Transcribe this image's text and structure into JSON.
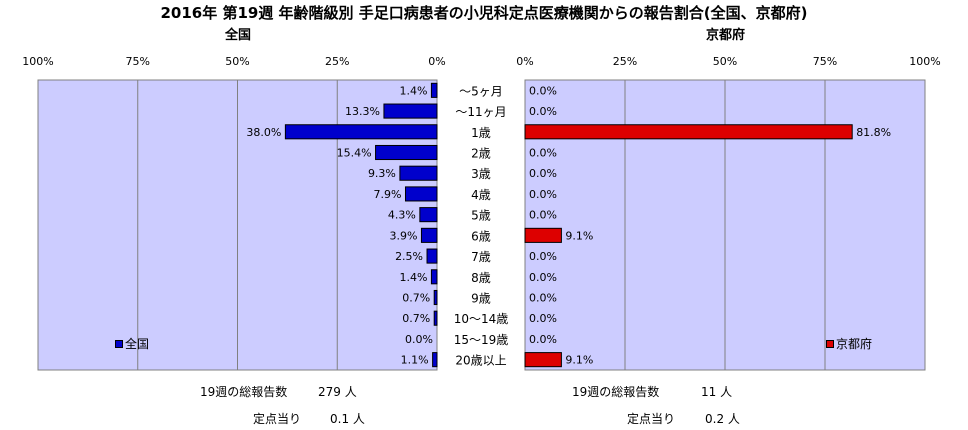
{
  "title": "2016年 第19週 年齢階級別 手足口病患者の小児科定点医療機関からの報告割合(全国、京都府)",
  "chart_data": {
    "type": "bar",
    "orientation": "horizontal",
    "categories": [
      "～5ヶ月",
      "～11ヶ月",
      "1歳",
      "2歳",
      "3歳",
      "4歳",
      "5歳",
      "6歳",
      "7歳",
      "8歳",
      "9歳",
      "10～14歳",
      "15～19歳",
      "20歳以上"
    ],
    "xlim": [
      0,
      100
    ],
    "tick_labels": [
      "0%",
      "25%",
      "50%",
      "75%",
      "100%"
    ],
    "grid": true,
    "panels": [
      {
        "title": "全国",
        "series_name": "全国",
        "color": "#0000cc",
        "direction": "reversed",
        "values": [
          1.4,
          13.3,
          38.0,
          15.4,
          9.3,
          7.9,
          4.3,
          3.9,
          2.5,
          1.4,
          0.7,
          0.7,
          0.0,
          1.1
        ],
        "value_labels": [
          "1.4%",
          "13.3%",
          "38.0%",
          "15.4%",
          "9.3%",
          "7.9%",
          "4.3%",
          "3.9%",
          "2.5%",
          "1.4%",
          "0.7%",
          "0.7%",
          "0.0%",
          "1.1%"
        ],
        "tick_labels": [
          "100%",
          "75%",
          "50%",
          "25%",
          "0%"
        ]
      },
      {
        "title": "京都府",
        "series_name": "京都府",
        "color": "#dd0000",
        "direction": "normal",
        "values": [
          0.0,
          0.0,
          81.8,
          0.0,
          0.0,
          0.0,
          0.0,
          9.1,
          0.0,
          0.0,
          0.0,
          0.0,
          0.0,
          9.1
        ],
        "value_labels": [
          "0.0%",
          "0.0%",
          "81.8%",
          "0.0%",
          "0.0%",
          "0.0%",
          "0.0%",
          "9.1%",
          "0.0%",
          "0.0%",
          "0.0%",
          "0.0%",
          "0.0%",
          "9.1%"
        ],
        "tick_labels": [
          "0%",
          "25%",
          "50%",
          "75%",
          "100%"
        ]
      }
    ],
    "plot_background": "#ccccff"
  },
  "stats": {
    "national": {
      "total_label": "19週の総報告数",
      "total_value": "279 人",
      "per_label": "定点当り",
      "per_value": "0.1 人"
    },
    "kyoto": {
      "total_label": "19週の総報告数",
      "total_value": "11 人",
      "per_label": "定点当り",
      "per_value": "0.2 人"
    }
  }
}
